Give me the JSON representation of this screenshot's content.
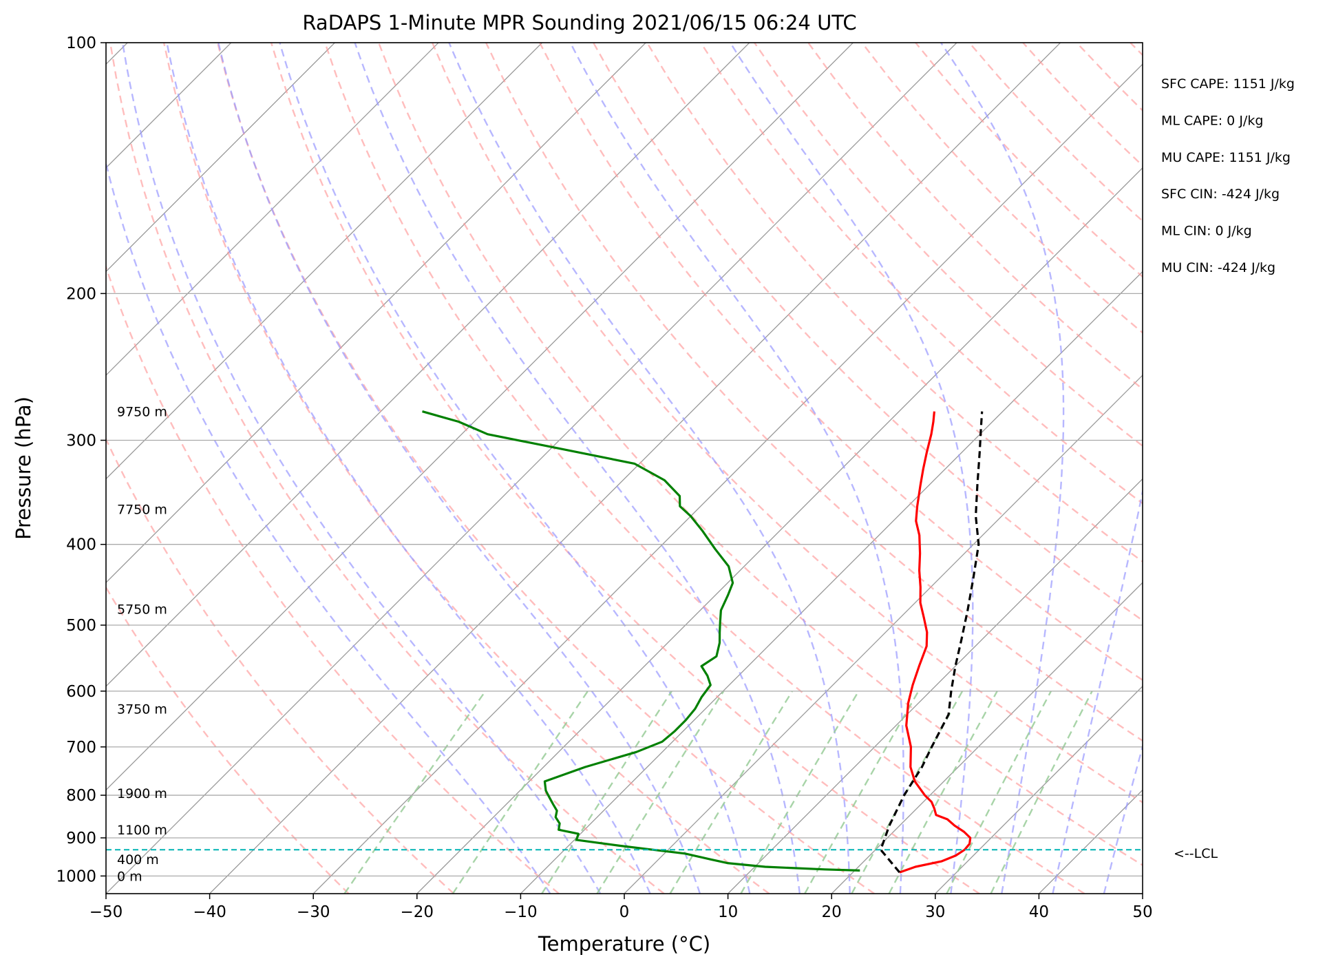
{
  "chart_data": {
    "type": "line",
    "subtype": "skew-T log-P sounding",
    "title": "RaDAPS 1-Minute MPR Sounding 2021/06/15 06:24 UTC",
    "xlabel": "Temperature (°C)",
    "ylabel": "Pressure (hPa)",
    "xlim": [
      -50,
      50
    ],
    "ylim": [
      1050,
      100
    ],
    "y_scale": "log",
    "x_ticks": [
      -50,
      -40,
      -30,
      -20,
      -10,
      0,
      10,
      20,
      30,
      40,
      50
    ],
    "x_tick_labels": [
      "−50",
      "−40",
      "−30",
      "−20",
      "−10",
      "0",
      "10",
      "20",
      "30",
      "40",
      "50"
    ],
    "y_ticks": [
      100,
      200,
      300,
      400,
      500,
      600,
      700,
      800,
      900,
      1000
    ],
    "y_tick_labels": [
      "100",
      "200",
      "300",
      "400",
      "500",
      "600",
      "700",
      "800",
      "900",
      "1000"
    ],
    "grid": true,
    "colors": {
      "temperature": "#ff0000",
      "dewpoint": "#008000",
      "parcel": "#000000",
      "dry_adiabats": "#ff9999",
      "moist_adiabats": "#9999ff",
      "mixing_ratio": "#99cc99",
      "isotherms": "#999999",
      "lcl_line": "#00b3b3"
    },
    "series": [
      {
        "role": "temperature",
        "pressure": [
          990,
          975,
          960,
          945,
          930,
          915,
          900,
          885,
          870,
          855,
          845,
          830,
          815,
          800,
          770,
          740,
          700,
          660,
          620,
          590,
          560,
          530,
          510,
          490,
          470,
          450,
          430,
          410,
          390,
          375,
          360,
          340,
          325,
          310,
          295,
          285,
          277
        ],
        "temperature": [
          24.5,
          25.5,
          27.5,
          28.3,
          28.6,
          28.5,
          28.0,
          26.8,
          25.3,
          24.0,
          22.5,
          21.7,
          20.8,
          19.5,
          17.2,
          15.4,
          13.5,
          11.0,
          9.0,
          7.7,
          6.5,
          5.3,
          4.0,
          2.3,
          0.5,
          -1.0,
          -2.7,
          -4.3,
          -6.1,
          -7.8,
          -9.1,
          -10.8,
          -12.1,
          -13.4,
          -14.7,
          -15.7,
          -16.6
        ]
      },
      {
        "role": "dewpoint",
        "pressure": [
          985,
          982,
          975,
          965,
          955,
          940,
          930,
          920,
          905,
          890,
          880,
          865,
          850,
          835,
          820,
          805,
          790,
          770,
          740,
          710,
          690,
          670,
          650,
          630,
          610,
          590,
          575,
          560,
          545,
          525,
          510,
          495,
          480,
          460,
          445,
          425,
          405,
          385,
          370,
          360,
          350,
          335,
          320,
          305,
          295,
          285,
          277
        ],
        "temperature": [
          20.5,
          17.0,
          11.0,
          7.0,
          5.0,
          2.0,
          -1.5,
          -5.0,
          -9.8,
          -10.2,
          -12.5,
          -13.0,
          -14.0,
          -14.5,
          -15.5,
          -16.5,
          -17.5,
          -18.5,
          -16.0,
          -12.5,
          -11.0,
          -10.8,
          -10.8,
          -11.0,
          -11.5,
          -11.8,
          -13.0,
          -14.5,
          -14.0,
          -15.0,
          -16.0,
          -17.0,
          -18.0,
          -18.8,
          -19.5,
          -21.5,
          -24.5,
          -27.5,
          -30.0,
          -32.0,
          -33.0,
          -36.0,
          -40.5,
          -50.5,
          -57.5,
          -61.5,
          -66.0
        ]
      },
      {
        "role": "parcel",
        "pressure": [
          990,
          930,
          870,
          800,
          740,
          700,
          640,
          600,
          560,
          520,
          480,
          440,
          400,
          370,
          340,
          310,
          290,
          277
        ],
        "temperature": [
          24.5,
          20.5,
          19.0,
          17.5,
          16.5,
          15.5,
          14.0,
          12.0,
          10.0,
          8.0,
          5.8,
          3.3,
          0.5,
          -2.5,
          -5.3,
          -8.3,
          -10.5,
          -12.0
        ]
      }
    ],
    "lcl_pressure": 930,
    "lcl_label": "<--LCL",
    "height_labels": [
      {
        "label": "0 m",
        "pressure": 1000
      },
      {
        "label": "400 m",
        "pressure": 955
      },
      {
        "label": "1100 m",
        "pressure": 880
      },
      {
        "label": "1900 m",
        "pressure": 795
      },
      {
        "label": "3750 m",
        "pressure": 630
      },
      {
        "label": "5750 m",
        "pressure": 478
      },
      {
        "label": "7750 m",
        "pressure": 363
      },
      {
        "label": "9750 m",
        "pressure": 277
      }
    ],
    "annotations": [
      "SFC CAPE: 1151 J/kg",
      "ML CAPE: 0 J/kg",
      "MU CAPE: 1151 J/kg",
      "SFC CIN: -424 J/kg",
      "ML CIN: 0 J/kg",
      "MU CIN: -424 J/kg"
    ]
  }
}
